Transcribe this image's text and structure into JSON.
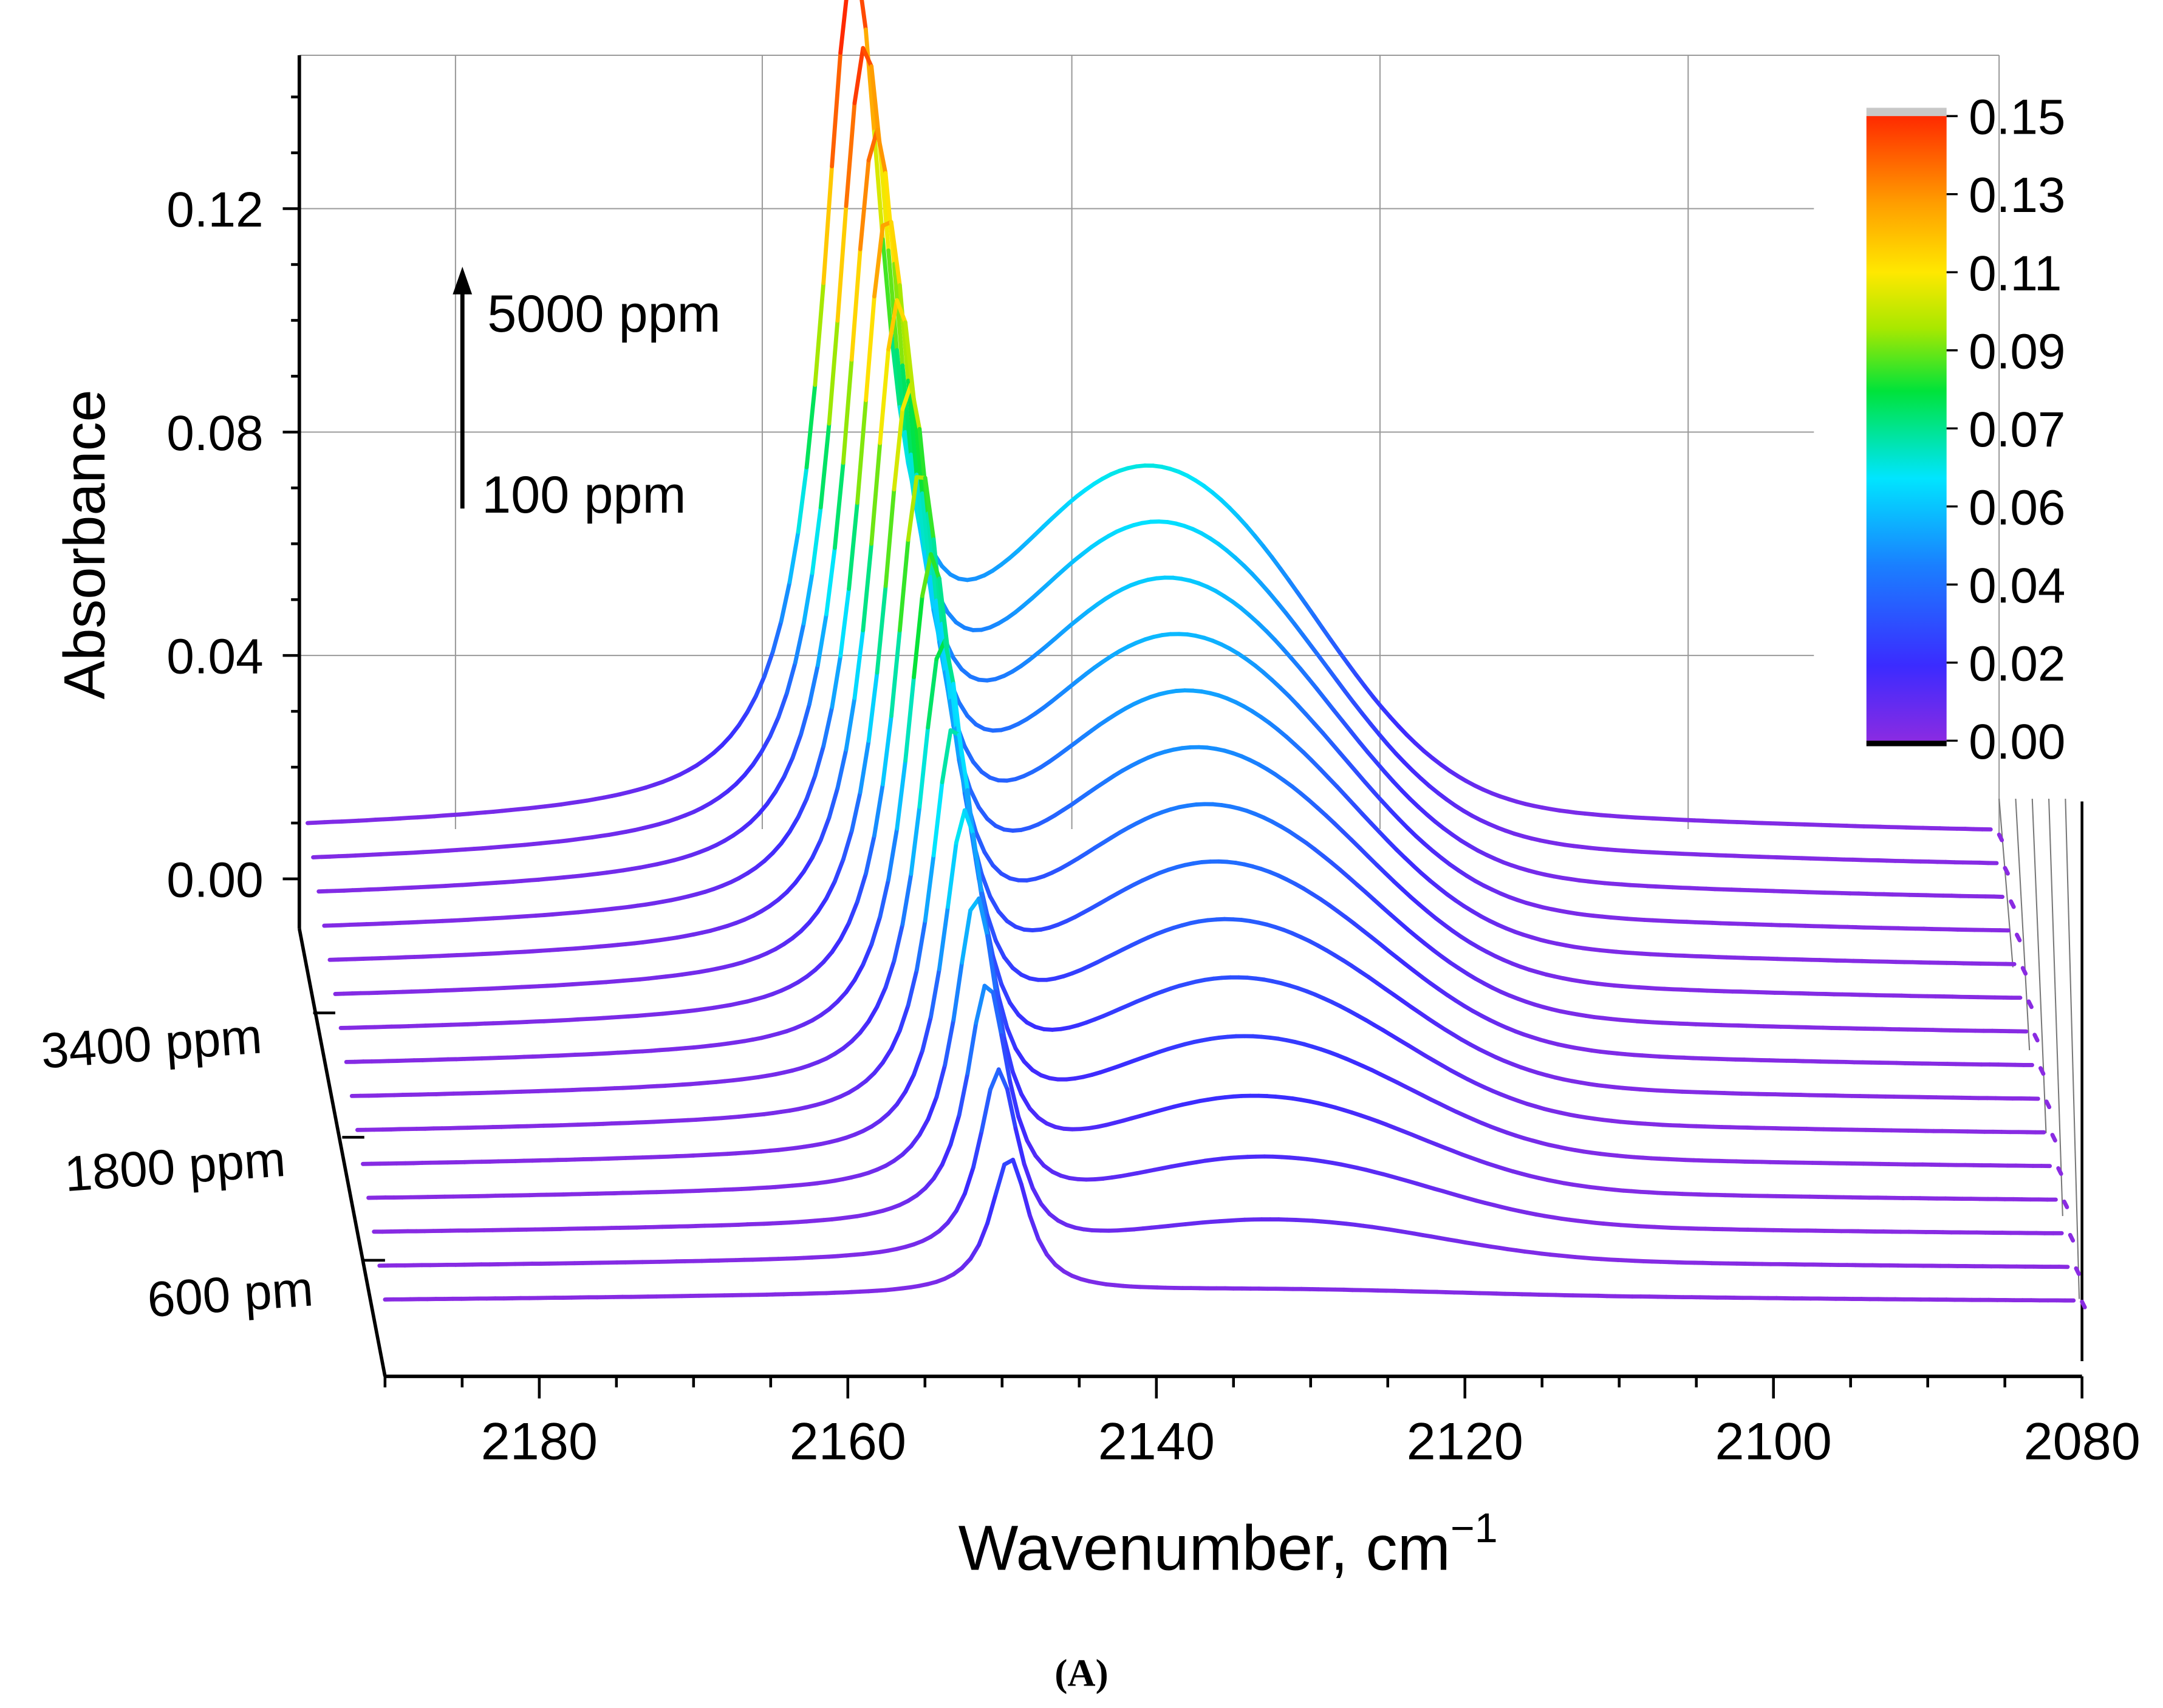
{
  "chart_data": {
    "type": "line",
    "style": "3d-waterfall",
    "xlabel": "Wavenumber, cm",
    "xlabel_superscript": "−1",
    "ylabel": "Absorbance",
    "xlim": [
      2190,
      2080
    ],
    "ylim": [
      -0.01,
      0.148
    ],
    "x_ticks": [
      "2180",
      "2160",
      "2140",
      "2120",
      "2100",
      "2080"
    ],
    "y_ticks": [
      "0.12",
      "0.08",
      "0.04",
      "0.00"
    ],
    "y_tick_values": [
      0.12,
      0.08,
      0.04,
      0.0
    ],
    "z_labels": [
      "3400 ppm",
      "1800 ppm",
      "600 pm"
    ],
    "annotations": {
      "arrow_top": "5000 ppm",
      "arrow_bottom": "100 ppm"
    },
    "colorbar": {
      "labels": [
        "0.15",
        "0.13",
        "0.11",
        "0.09",
        "0.07",
        "0.06",
        "0.04",
        "0.02",
        "0.00"
      ],
      "range": [
        0.0,
        0.15
      ],
      "stops": [
        "#8a2be2",
        "#3b2bff",
        "#1a7fff",
        "#00e5ff",
        "#00e33a",
        "#a8e800",
        "#ffe800",
        "#ff9e00",
        "#ff2a00"
      ]
    },
    "series_count": 15,
    "series_note": "Spectra from 100 ppm (front) to 5000 ppm (back); peak near 2150 cm⁻¹ and broad band near 2135 cm⁻¹",
    "caption": "(A)"
  }
}
